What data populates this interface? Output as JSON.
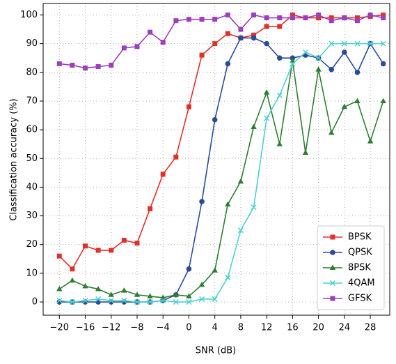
{
  "chart_data": {
    "type": "line",
    "xlabel": "SNR (dB)",
    "ylabel": "Classification accuracy (%)",
    "x": [
      -20,
      -18,
      -16,
      -14,
      -12,
      -10,
      -8,
      -6,
      -4,
      -2,
      0,
      2,
      4,
      6,
      8,
      10,
      12,
      14,
      16,
      18,
      20,
      22,
      24,
      26,
      28,
      30
    ],
    "xlim": [
      -22.5,
      31
    ],
    "ylim": [
      -4.6,
      104
    ],
    "xticks": [
      {
        "value": -20,
        "label": "−20"
      },
      {
        "value": -16,
        "label": "−16"
      },
      {
        "value": -12,
        "label": "−12"
      },
      {
        "value": -8,
        "label": "−8"
      },
      {
        "value": -4,
        "label": "−4"
      },
      0,
      4,
      8,
      12,
      16,
      20,
      24,
      28
    ],
    "yticks": [
      0,
      10,
      20,
      30,
      40,
      50,
      60,
      70,
      80,
      90,
      100
    ],
    "grid": true,
    "legend": "lower right",
    "series": [
      {
        "name": "BPSK",
        "color": "#e0302a",
        "marker": "square",
        "values": [
          16,
          11.5,
          19.5,
          18,
          18,
          21.5,
          20.5,
          32.5,
          44.5,
          50.5,
          68,
          86,
          90,
          93.5,
          92,
          93,
          96,
          96,
          100,
          99,
          99,
          99,
          99,
          99,
          99.5,
          100
        ]
      },
      {
        "name": "QPSK",
        "color": "#2a4a9a",
        "marker": "circle",
        "values": [
          0,
          0,
          0,
          0,
          0,
          0,
          0,
          0,
          0.5,
          2.5,
          11.5,
          35,
          63.5,
          83,
          92,
          92,
          90,
          85,
          85,
          86,
          85,
          81,
          87,
          80,
          90,
          83
        ]
      },
      {
        "name": "8PSK",
        "color": "#2e7d32",
        "marker": "triangle",
        "values": [
          4.5,
          7.5,
          5.5,
          4.5,
          2.5,
          4,
          2.5,
          2,
          1.5,
          2.5,
          2,
          6,
          11,
          34,
          42,
          61,
          73,
          55,
          84,
          52,
          81,
          59,
          68,
          70,
          56,
          70
        ]
      },
      {
        "name": "4QAM",
        "color": "#4fd0d0",
        "marker": "x",
        "values": [
          0.5,
          0,
          0.5,
          1,
          0.5,
          0.5,
          0,
          0,
          0.5,
          0,
          0,
          1,
          1,
          8.5,
          25,
          33,
          64,
          72,
          83,
          87,
          85,
          90,
          90,
          90,
          90,
          90
        ]
      },
      {
        "name": "GFSK",
        "color": "#9b3fbf",
        "marker": "square",
        "values": [
          83,
          82.5,
          81.5,
          82,
          82.5,
          88.5,
          89,
          94,
          90.5,
          98,
          98.5,
          98.5,
          98.5,
          100,
          95,
          100,
          99,
          99,
          99,
          99,
          100,
          98,
          99,
          98,
          100,
          99
        ]
      }
    ]
  }
}
